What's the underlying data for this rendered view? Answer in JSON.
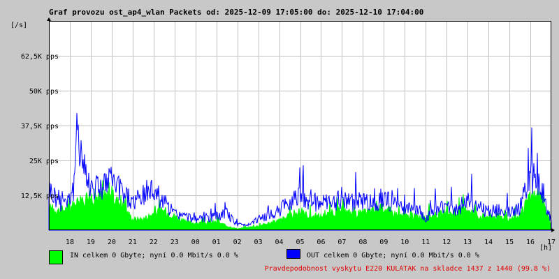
{
  "header": {
    "title": "Graf provozu ost_ap4_wlan Packets od: 2025-12-09 17:05:00 do: 2025-12-10 17:04:00"
  },
  "chart_data": {
    "type": "area",
    "y_unit_label": "[/s]",
    "x_unit_label": "[h]",
    "ylim": [
      0,
      75000
    ],
    "yticks": [
      {
        "value": 12500,
        "label": "12,5K pps"
      },
      {
        "value": 25000,
        "label": "25K pps"
      },
      {
        "value": 37500,
        "label": "37,5K pps"
      },
      {
        "value": 50000,
        "label": "50K pps"
      },
      {
        "value": 62500,
        "label": "62,5K pps"
      }
    ],
    "xlim": [
      17.0,
      41.0
    ],
    "xticks": [
      {
        "value": 18,
        "label": "18"
      },
      {
        "value": 19,
        "label": "19"
      },
      {
        "value": 20,
        "label": "20"
      },
      {
        "value": 21,
        "label": "21"
      },
      {
        "value": 22,
        "label": "22"
      },
      {
        "value": 23,
        "label": "23"
      },
      {
        "value": 24,
        "label": "00"
      },
      {
        "value": 25,
        "label": "01"
      },
      {
        "value": 26,
        "label": "02"
      },
      {
        "value": 27,
        "label": "03"
      },
      {
        "value": 28,
        "label": "04"
      },
      {
        "value": 29,
        "label": "05"
      },
      {
        "value": 30,
        "label": "06"
      },
      {
        "value": 31,
        "label": "07"
      },
      {
        "value": 32,
        "label": "08"
      },
      {
        "value": 33,
        "label": "09"
      },
      {
        "value": 34,
        "label": "10"
      },
      {
        "value": 35,
        "label": "11"
      },
      {
        "value": 36,
        "label": "12"
      },
      {
        "value": 37,
        "label": "13"
      },
      {
        "value": 38,
        "label": "14"
      },
      {
        "value": 39,
        "label": "15"
      },
      {
        "value": 40,
        "label": "16"
      },
      {
        "value": 41,
        "label": "17"
      }
    ],
    "grid": true,
    "series": [
      {
        "name": "IN",
        "color": "#00ff00",
        "x": [
          17.0,
          17.5,
          18.0,
          18.5,
          19.0,
          19.5,
          20.0,
          20.5,
          21.0,
          21.5,
          22.0,
          22.5,
          23.0,
          23.5,
          24.0,
          24.5,
          25.0,
          25.5,
          26.0,
          26.5,
          27.0,
          27.5,
          28.0,
          28.5,
          29.0,
          29.5,
          30.0,
          30.5,
          31.0,
          31.5,
          32.0,
          32.5,
          33.0,
          33.5,
          34.0,
          34.5,
          35.0,
          35.5,
          36.0,
          36.5,
          37.0,
          37.5,
          38.0,
          38.5,
          39.0,
          39.5,
          40.0,
          40.5,
          41.0
        ],
        "values": [
          8000,
          7000,
          8000,
          10000,
          12000,
          12000,
          12000,
          9000,
          4000,
          4000,
          6000,
          7000,
          5000,
          3000,
          2500,
          2500,
          3000,
          1500,
          500,
          1000,
          1500,
          2500,
          3500,
          5000,
          6500,
          5000,
          5000,
          6000,
          7000,
          6000,
          6000,
          7000,
          8000,
          6000,
          5000,
          5000,
          5000,
          5500,
          6000,
          6000,
          8000,
          5000,
          5000,
          5000,
          4000,
          5000,
          12000,
          12000,
          2000
        ]
      },
      {
        "name": "OUT",
        "color": "#0000ff",
        "x": [
          17.0,
          17.5,
          18.0,
          18.2,
          18.4,
          18.6,
          18.8,
          19.0,
          19.5,
          20.0,
          20.5,
          21.0,
          21.5,
          22.0,
          22.5,
          23.0,
          23.5,
          24.0,
          24.5,
          25.0,
          25.5,
          26.0,
          26.5,
          27.0,
          27.5,
          28.0,
          28.5,
          29.0,
          29.5,
          30.0,
          30.5,
          31.0,
          31.5,
          32.0,
          32.5,
          33.0,
          33.5,
          34.0,
          34.5,
          35.0,
          35.5,
          36.0,
          36.5,
          37.0,
          37.5,
          38.0,
          38.5,
          39.0,
          39.5,
          40.0,
          40.5,
          41.0
        ],
        "values": [
          15000,
          10000,
          12000,
          15000,
          40000,
          25000,
          18000,
          16000,
          16000,
          17000,
          14000,
          10000,
          12000,
          15000,
          10000,
          6000,
          5000,
          4000,
          4000,
          5000,
          6000,
          2000,
          2000,
          4000,
          5000,
          7000,
          10000,
          14000,
          10000,
          10000,
          9000,
          12000,
          10000,
          11000,
          9000,
          12000,
          9000,
          7000,
          8000,
          4000,
          8000,
          9000,
          7000,
          12000,
          8000,
          7000,
          7000,
          7000,
          8000,
          20000,
          15000,
          3000
        ]
      }
    ]
  },
  "legend": {
    "in_text": "IN celkem 0 Gbyte; nyní   0.0 Mbit/s 0.0 %",
    "out_text": "OUT celkem 0 Gbyte; nyní   0.0 Mbit/s 0.0 %",
    "in_color": "#00ff00",
    "out_color": "#0000ff"
  },
  "notice": {
    "text": "Pravdepodobnost vyskytu E220 KULATAK na skladce 1437 z 1440 (99.8 %)"
  }
}
